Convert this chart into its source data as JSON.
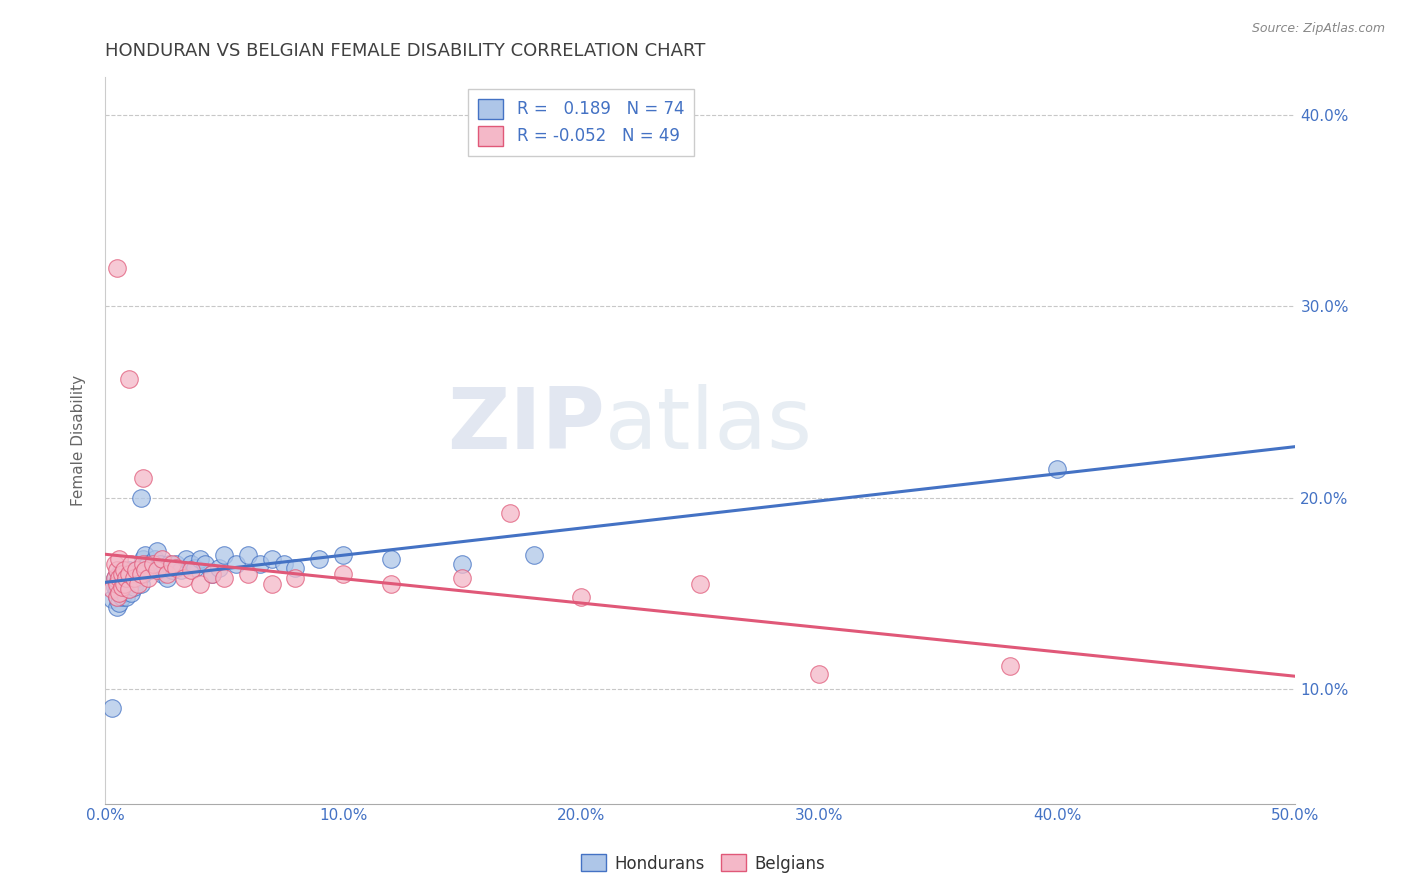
{
  "title": "HONDURAN VS BELGIAN FEMALE DISABILITY CORRELATION CHART",
  "source_text": "Source: ZipAtlas.com",
  "ylabel": "Female Disability",
  "xlim": [
    0.0,
    0.5
  ],
  "ylim": [
    0.04,
    0.42
  ],
  "xtick_labels": [
    "0.0%",
    "10.0%",
    "20.0%",
    "30.0%",
    "40.0%",
    "50.0%"
  ],
  "xtick_vals": [
    0.0,
    0.1,
    0.2,
    0.3,
    0.4,
    0.5
  ],
  "ytick_labels": [
    "10.0%",
    "20.0%",
    "30.0%",
    "40.0%"
  ],
  "ytick_vals": [
    0.1,
    0.2,
    0.3,
    0.4
  ],
  "honduran_color": "#aec6e8",
  "belgian_color": "#f4b8c8",
  "honduran_line_color": "#4472c4",
  "belgian_line_color": "#e05878",
  "legend_r_honduran": "0.189",
  "legend_n_honduran": "74",
  "legend_r_belgian": "-0.052",
  "legend_n_belgian": "49",
  "watermark_zip": "ZIP",
  "watermark_atlas": "atlas",
  "title_color": "#404040",
  "title_fontsize": 13,
  "axis_label_color": "#666666",
  "tick_color": "#4472c4",
  "grid_color": "#c8c8c8",
  "background_color": "#ffffff",
  "honduran_scatter": [
    [
      0.003,
      0.147
    ],
    [
      0.004,
      0.153
    ],
    [
      0.004,
      0.158
    ],
    [
      0.005,
      0.143
    ],
    [
      0.005,
      0.148
    ],
    [
      0.005,
      0.152
    ],
    [
      0.005,
      0.156
    ],
    [
      0.006,
      0.145
    ],
    [
      0.006,
      0.15
    ],
    [
      0.006,
      0.154
    ],
    [
      0.006,
      0.16
    ],
    [
      0.007,
      0.148
    ],
    [
      0.007,
      0.153
    ],
    [
      0.007,
      0.158
    ],
    [
      0.007,
      0.162
    ],
    [
      0.008,
      0.15
    ],
    [
      0.008,
      0.155
    ],
    [
      0.008,
      0.16
    ],
    [
      0.009,
      0.148
    ],
    [
      0.009,
      0.154
    ],
    [
      0.009,
      0.158
    ],
    [
      0.01,
      0.152
    ],
    [
      0.01,
      0.157
    ],
    [
      0.01,
      0.162
    ],
    [
      0.011,
      0.15
    ],
    [
      0.011,
      0.155
    ],
    [
      0.011,
      0.16
    ],
    [
      0.012,
      0.153
    ],
    [
      0.012,
      0.158
    ],
    [
      0.013,
      0.156
    ],
    [
      0.013,
      0.162
    ],
    [
      0.014,
      0.158
    ],
    [
      0.015,
      0.155
    ],
    [
      0.015,
      0.162
    ],
    [
      0.015,
      0.2
    ],
    [
      0.016,
      0.16
    ],
    [
      0.016,
      0.168
    ],
    [
      0.017,
      0.162
    ],
    [
      0.017,
      0.17
    ],
    [
      0.018,
      0.165
    ],
    [
      0.019,
      0.162
    ],
    [
      0.02,
      0.165
    ],
    [
      0.021,
      0.168
    ],
    [
      0.022,
      0.163
    ],
    [
      0.022,
      0.172
    ],
    [
      0.023,
      0.165
    ],
    [
      0.024,
      0.16
    ],
    [
      0.025,
      0.163
    ],
    [
      0.026,
      0.158
    ],
    [
      0.027,
      0.165
    ],
    [
      0.028,
      0.162
    ],
    [
      0.03,
      0.165
    ],
    [
      0.032,
      0.162
    ],
    [
      0.034,
      0.168
    ],
    [
      0.036,
      0.165
    ],
    [
      0.038,
      0.163
    ],
    [
      0.04,
      0.168
    ],
    [
      0.042,
      0.165
    ],
    [
      0.045,
      0.16
    ],
    [
      0.048,
      0.163
    ],
    [
      0.05,
      0.17
    ],
    [
      0.055,
      0.165
    ],
    [
      0.06,
      0.17
    ],
    [
      0.065,
      0.165
    ],
    [
      0.07,
      0.168
    ],
    [
      0.075,
      0.165
    ],
    [
      0.08,
      0.163
    ],
    [
      0.09,
      0.168
    ],
    [
      0.1,
      0.17
    ],
    [
      0.12,
      0.168
    ],
    [
      0.15,
      0.165
    ],
    [
      0.18,
      0.17
    ],
    [
      0.4,
      0.215
    ],
    [
      0.003,
      0.09
    ]
  ],
  "belgian_scatter": [
    [
      0.003,
      0.152
    ],
    [
      0.004,
      0.158
    ],
    [
      0.004,
      0.165
    ],
    [
      0.005,
      0.148
    ],
    [
      0.005,
      0.155
    ],
    [
      0.005,
      0.162
    ],
    [
      0.006,
      0.15
    ],
    [
      0.006,
      0.158
    ],
    [
      0.006,
      0.168
    ],
    [
      0.007,
      0.153
    ],
    [
      0.007,
      0.16
    ],
    [
      0.008,
      0.155
    ],
    [
      0.008,
      0.162
    ],
    [
      0.009,
      0.158
    ],
    [
      0.01,
      0.152
    ],
    [
      0.01,
      0.16
    ],
    [
      0.011,
      0.165
    ],
    [
      0.012,
      0.158
    ],
    [
      0.013,
      0.162
    ],
    [
      0.014,
      0.155
    ],
    [
      0.015,
      0.16
    ],
    [
      0.016,
      0.165
    ],
    [
      0.016,
      0.21
    ],
    [
      0.017,
      0.162
    ],
    [
      0.018,
      0.158
    ],
    [
      0.02,
      0.165
    ],
    [
      0.022,
      0.162
    ],
    [
      0.024,
      0.168
    ],
    [
      0.026,
      0.16
    ],
    [
      0.028,
      0.165
    ],
    [
      0.03,
      0.163
    ],
    [
      0.033,
      0.158
    ],
    [
      0.036,
      0.162
    ],
    [
      0.04,
      0.155
    ],
    [
      0.045,
      0.16
    ],
    [
      0.05,
      0.158
    ],
    [
      0.06,
      0.16
    ],
    [
      0.07,
      0.155
    ],
    [
      0.08,
      0.158
    ],
    [
      0.1,
      0.16
    ],
    [
      0.12,
      0.155
    ],
    [
      0.15,
      0.158
    ],
    [
      0.17,
      0.192
    ],
    [
      0.2,
      0.148
    ],
    [
      0.25,
      0.155
    ],
    [
      0.3,
      0.108
    ],
    [
      0.005,
      0.32
    ],
    [
      0.01,
      0.262
    ],
    [
      0.38,
      0.112
    ]
  ]
}
